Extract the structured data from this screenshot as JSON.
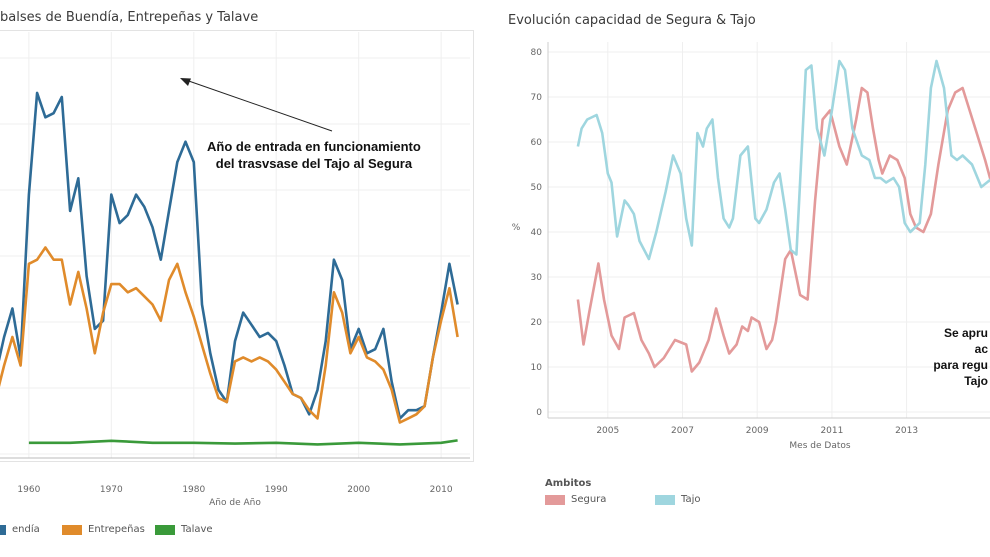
{
  "left": {
    "title": "balses de Buendía, Entrepeñas y Talave",
    "annotation": {
      "line1": "Año de entrada en funcionamiento",
      "line2": "del trasvsase del Tajo al Segura"
    },
    "legend": [
      {
        "label": "endía",
        "color": "#2e6b96"
      },
      {
        "label": "Entrepeñas",
        "color": "#e08b2b"
      },
      {
        "label": "Talave",
        "color": "#3a9a3a"
      }
    ]
  },
  "right": {
    "title": "Evolución capacidad de Segura & Tajo",
    "annotation": {
      "line1": "Se apru",
      "line2": "ac",
      "line3": "para regu",
      "line4": "Tajo"
    },
    "legend_title": "Ambitos",
    "legend": [
      {
        "label": "Segura",
        "color": "#e39a9a"
      },
      {
        "label": "Tajo",
        "color": "#9fd6df"
      }
    ]
  },
  "chart_data": [
    {
      "type": "line",
      "title": "balses de Buendía, Entrepeñas y Talave",
      "xlabel": "Año de Año",
      "ylabel": "",
      "xlim": [
        1956.5,
        2013.5
      ],
      "ylim": [
        -2,
        100
      ],
      "x_ticks": [
        1960,
        1970,
        1980,
        1990,
        2000,
        2010
      ],
      "series": [
        {
          "name": "Buendía",
          "color": "#2e6b96",
          "x": [
            1955,
            1956,
            1957,
            1958,
            1959,
            1960,
            1961,
            1962,
            1963,
            1964,
            1965,
            1966,
            1967,
            1968,
            1969,
            1970,
            1971,
            1972,
            1973,
            1974,
            1975,
            1976,
            1977,
            1978,
            1979,
            1980,
            1981,
            1982,
            1983,
            1984,
            1985,
            1986,
            1987,
            1988,
            1989,
            1990,
            1991,
            1992,
            1993,
            1994,
            1995,
            1996,
            1997,
            1998,
            1999,
            2000,
            2001,
            2002,
            2003,
            2004,
            2005,
            2006,
            2007,
            2008,
            2009,
            2010,
            2011,
            2012
          ],
          "y": [
            9,
            18,
            27,
            34,
            22,
            62,
            87,
            81,
            82,
            86,
            58,
            66,
            42,
            29,
            31,
            62,
            55,
            57,
            62,
            59,
            54,
            46,
            58,
            70,
            75,
            70,
            35,
            23,
            14,
            11,
            26,
            33,
            30,
            27,
            28,
            26,
            20,
            13,
            12,
            8,
            14,
            26,
            46,
            41,
            24,
            29,
            23,
            24,
            29,
            16,
            7,
            9,
            9,
            10,
            22,
            33,
            45,
            35
          ],
          "labels": {
            "min_hidden_before": 1957
          }
        },
        {
          "name": "Entrepeñas",
          "color": "#e08b2b",
          "x": [
            1955,
            1956,
            1957,
            1958,
            1959,
            1960,
            1961,
            1962,
            1963,
            1964,
            1965,
            1966,
            1967,
            1968,
            1969,
            1970,
            1971,
            1972,
            1973,
            1974,
            1975,
            1976,
            1977,
            1978,
            1979,
            1980,
            1981,
            1982,
            1983,
            1984,
            1985,
            1986,
            1987,
            1988,
            1989,
            1990,
            1991,
            1992,
            1993,
            1994,
            1995,
            1996,
            1997,
            1998,
            1999,
            2000,
            2001,
            2002,
            2003,
            2004,
            2005,
            2006,
            2007,
            2008,
            2009,
            2010,
            2011,
            2012
          ],
          "y": [
            8,
            12,
            20,
            27,
            20,
            45,
            46,
            49,
            46,
            46,
            35,
            43,
            34,
            23,
            33,
            40,
            40,
            38,
            39,
            37,
            35,
            31,
            41,
            45,
            38,
            32,
            25,
            18,
            12,
            11,
            21,
            22,
            21,
            22,
            21,
            19,
            16,
            13,
            12,
            9,
            7,
            20,
            38,
            33,
            23,
            27,
            22,
            21,
            19,
            14,
            6,
            7,
            8,
            10,
            22,
            31,
            39,
            27
          ]
        },
        {
          "name": "Talave",
          "color": "#3a9a3a",
          "x": [
            1955,
            1960,
            1965,
            1970,
            1975,
            1980,
            1985,
            1990,
            1995,
            2000,
            2005,
            2010,
            2012
          ],
          "y": [
            1,
            1,
            1,
            1.5,
            1,
            1,
            0.8,
            1,
            0.6,
            1,
            0.6,
            1,
            1.6
          ]
        }
      ]
    },
    {
      "type": "line",
      "title": "Evolución capacidad de Segura & Tajo",
      "xlabel": "Mes de Datos",
      "ylabel": "%",
      "xlim": [
        2003.4,
        2015.5
      ],
      "ylim": [
        0,
        80
      ],
      "y_ticks": [
        0,
        10,
        20,
        30,
        40,
        50,
        60,
        70,
        80
      ],
      "x_ticks": [
        2005,
        2007,
        2009,
        2011,
        2013
      ],
      "series": [
        {
          "name": "Segura",
          "color": "#e39a9a",
          "x": [
            2004.2,
            2004.35,
            2004.5,
            2004.75,
            2004.9,
            2005.1,
            2005.3,
            2005.45,
            2005.7,
            2005.9,
            2006.1,
            2006.25,
            2006.5,
            2006.8,
            2007.1,
            2007.25,
            2007.45,
            2007.7,
            2007.9,
            2008.1,
            2008.25,
            2008.45,
            2008.6,
            2008.75,
            2008.85,
            2009.05,
            2009.25,
            2009.4,
            2009.5,
            2009.75,
            2009.9,
            2010.05,
            2010.15,
            2010.35,
            2010.55,
            2010.75,
            2010.95,
            2011.2,
            2011.4,
            2011.65,
            2011.8,
            2011.95,
            2012.1,
            2012.25,
            2012.35,
            2012.55,
            2012.75,
            2012.95,
            2013.1,
            2013.25,
            2013.45,
            2013.65,
            2013.85,
            2014.1,
            2014.3,
            2014.5,
            2014.8,
            2015.1,
            2015.3
          ],
          "y": [
            25,
            15,
            22,
            33,
            25,
            17,
            14,
            21,
            22,
            16,
            13,
            10,
            12,
            16,
            15,
            9,
            11,
            16,
            23,
            17,
            13,
            15,
            19,
            18,
            21,
            20,
            14,
            16,
            20,
            34,
            36,
            30,
            26,
            25,
            47,
            65,
            67,
            59,
            55,
            65,
            72,
            71,
            63,
            56,
            53,
            57,
            56,
            52,
            44,
            41,
            40,
            44,
            55,
            67,
            71,
            72,
            64,
            56,
            50
          ]
        },
        {
          "name": "Tajo",
          "color": "#9fd6df",
          "x": [
            2004.2,
            2004.3,
            2004.45,
            2004.7,
            2004.85,
            2005.0,
            2005.1,
            2005.25,
            2005.45,
            2005.55,
            2005.7,
            2005.85,
            2006.1,
            2006.3,
            2006.55,
            2006.75,
            2006.95,
            2007.1,
            2007.25,
            2007.4,
            2007.55,
            2007.65,
            2007.8,
            2007.95,
            2008.1,
            2008.25,
            2008.35,
            2008.55,
            2008.75,
            2008.95,
            2009.05,
            2009.25,
            2009.45,
            2009.6,
            2009.75,
            2009.9,
            2010.05,
            2010.3,
            2010.45,
            2010.6,
            2010.8,
            2011.0,
            2011.2,
            2011.35,
            2011.55,
            2011.8,
            2012.0,
            2012.15,
            2012.3,
            2012.45,
            2012.65,
            2012.8,
            2012.95,
            2013.1,
            2013.35,
            2013.5,
            2013.65,
            2013.8,
            2014.0,
            2014.2,
            2014.35,
            2014.5,
            2014.75,
            2015.0,
            2015.3
          ],
          "y": [
            59,
            63,
            65,
            66,
            62,
            53,
            51,
            39,
            47,
            46,
            44,
            38,
            34,
            40,
            49,
            57,
            53,
            43,
            37,
            62,
            59,
            63,
            65,
            52,
            43,
            41,
            43,
            57,
            59,
            43,
            42,
            45,
            51,
            53,
            45,
            36,
            35,
            76,
            77,
            63,
            57,
            67,
            78,
            76,
            63,
            57,
            56,
            52,
            52,
            51,
            52,
            50,
            42,
            40,
            42,
            55,
            72,
            78,
            72,
            57,
            56,
            57,
            55,
            50,
            52
          ]
        }
      ]
    }
  ]
}
